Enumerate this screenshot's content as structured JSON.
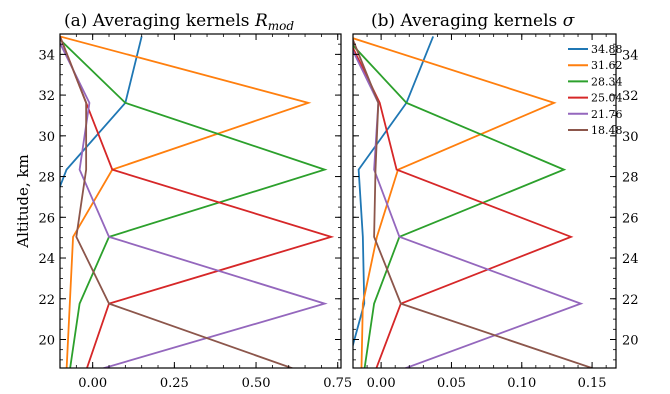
{
  "chart_data": [
    {
      "type": "line",
      "title": "(a) Averaging kernels ",
      "title_math": "R",
      "title_sub": "mod",
      "ylabel": "Altitude, km",
      "xlim": [
        -0.1,
        0.76
      ],
      "ylim": [
        18.6,
        35
      ],
      "xticks": [
        0.0,
        0.25,
        0.5,
        0.75
      ],
      "xtick_labels": [
        "0.00",
        "0.25",
        "0.50",
        "0.75"
      ],
      "yticks": [
        20,
        22,
        24,
        26,
        28,
        30,
        32,
        34
      ],
      "ytick_labels": [
        "20",
        "22",
        "24",
        "26",
        "28",
        "30",
        "32",
        "34"
      ],
      "altitudes": [
        18.48,
        21.76,
        25.04,
        28.34,
        31.62,
        34.88
      ],
      "series": [
        {
          "name": "34.88",
          "color": "#1f77b4",
          "values": [
            -0.22,
            -0.11,
            -0.16,
            -0.08,
            0.1,
            0.15
          ]
        },
        {
          "name": "31.62",
          "color": "#ff7f0e",
          "values": [
            -0.08,
            -0.07,
            -0.06,
            0.06,
            0.66,
            -0.1
          ]
        },
        {
          "name": "28.34",
          "color": "#2ca02c",
          "values": [
            -0.07,
            -0.04,
            0.05,
            0.71,
            0.1,
            -0.11
          ]
        },
        {
          "name": "25.04",
          "color": "#d62728",
          "values": [
            -0.02,
            0.05,
            0.73,
            0.06,
            -0.02,
            -0.1
          ]
        },
        {
          "name": "21.76",
          "color": "#9467bd",
          "values": [
            0.01,
            0.71,
            0.05,
            -0.04,
            -0.01,
            -0.11
          ]
        },
        {
          "name": "18.48",
          "color": "#8c564b",
          "values": [
            0.63,
            0.05,
            -0.05,
            -0.02,
            -0.02,
            -0.1
          ]
        }
      ]
    },
    {
      "type": "line",
      "title": "(b) Averaging kernels ",
      "title_math": "σ",
      "title_sub": "",
      "ylabel": "",
      "xlim": [
        -0.02,
        0.167
      ],
      "ylim": [
        18.6,
        35
      ],
      "xticks": [
        0.0,
        0.05,
        0.1,
        0.15
      ],
      "xtick_labels": [
        "0.00",
        "0.05",
        "0.10",
        "0.15"
      ],
      "yticks": [
        20,
        22,
        24,
        26,
        28,
        30,
        32,
        34
      ],
      "ytick_labels": [
        "20",
        "22",
        "24",
        "26",
        "28",
        "30",
        "32",
        "34"
      ],
      "altitudes": [
        18.48,
        21.76,
        25.04,
        28.34,
        31.62,
        34.88
      ],
      "legend": {
        "placement": "upper-right"
      },
      "series": [
        {
          "name": "34.88",
          "color": "#1f77b4",
          "values": [
            -0.025,
            -0.012,
            -0.013,
            -0.016,
            0.018,
            0.037
          ]
        },
        {
          "name": "31.62",
          "color": "#ff7f0e",
          "values": [
            -0.014,
            -0.013,
            -0.003,
            0.012,
            0.123,
            -0.024
          ]
        },
        {
          "name": "28.34",
          "color": "#2ca02c",
          "values": [
            -0.012,
            -0.005,
            0.013,
            0.13,
            0.018,
            -0.026
          ]
        },
        {
          "name": "25.04",
          "color": "#d62728",
          "values": [
            -0.004,
            0.014,
            0.135,
            0.011,
            -0.001,
            -0.024
          ]
        },
        {
          "name": "21.76",
          "color": "#9467bd",
          "values": [
            0.013,
            0.142,
            0.013,
            -0.005,
            -0.002,
            -0.025
          ]
        },
        {
          "name": "18.48",
          "color": "#8c564b",
          "values": [
            0.155,
            0.014,
            -0.005,
            -0.004,
            -0.002,
            -0.021
          ]
        }
      ]
    }
  ]
}
